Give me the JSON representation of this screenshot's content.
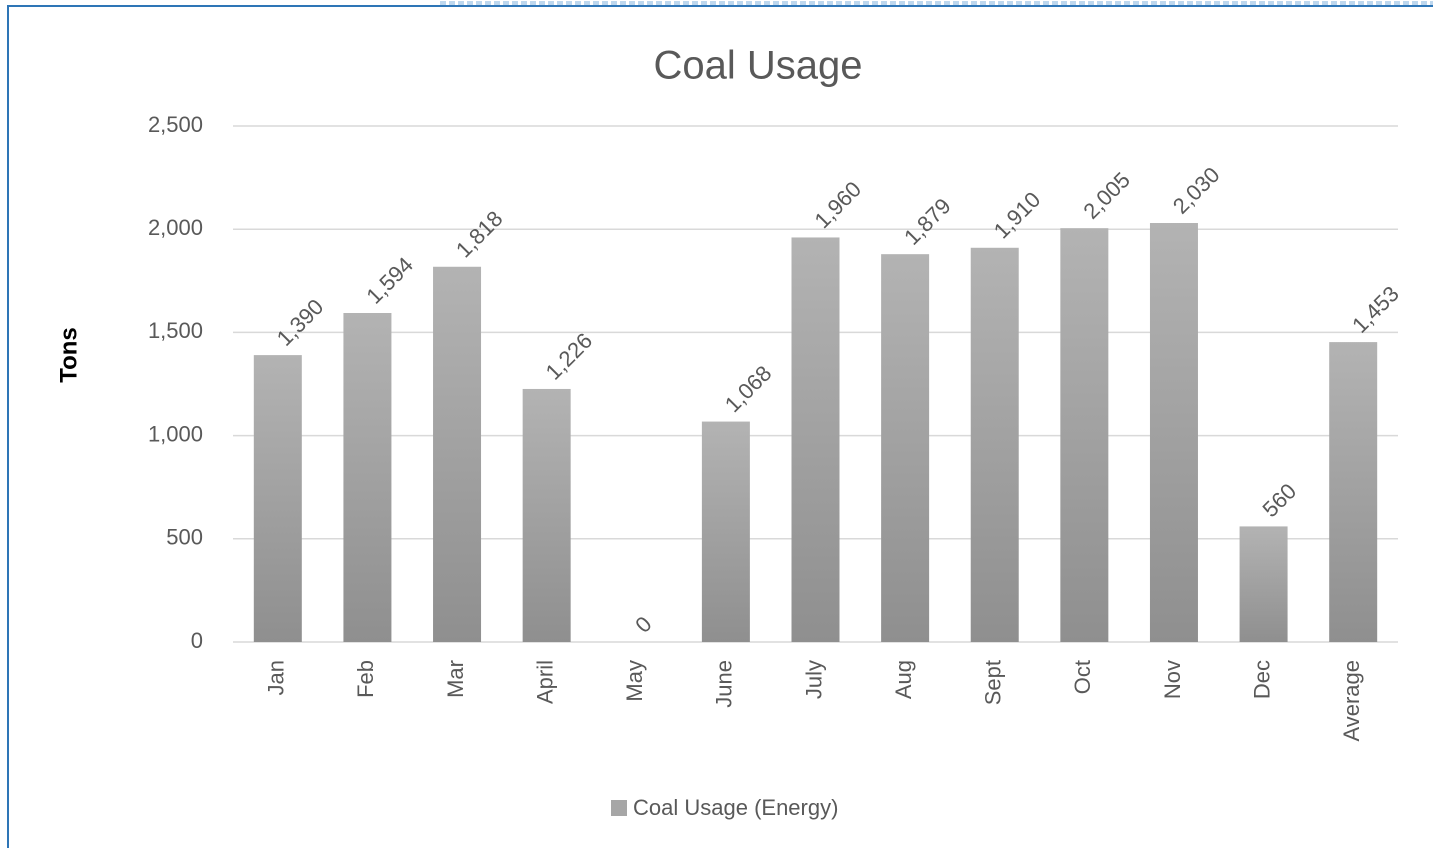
{
  "chart_data": {
    "type": "bar",
    "title": "Coal Usage",
    "y_label": "Tons",
    "categories": [
      "Jan",
      "Feb",
      "Mar",
      "April",
      "May",
      "June",
      "July",
      "Aug",
      "Sept",
      "Oct",
      "Nov",
      "Dec",
      "Average"
    ],
    "series": [
      {
        "name": "Coal Usage (Energy)",
        "color": "#a6a6a6",
        "values": [
          1390,
          1594,
          1818,
          1226,
          0,
          1068,
          1960,
          1879,
          1910,
          2005,
          2030,
          560,
          1453
        ],
        "value_labels": [
          "1,390",
          "1,594",
          "1,818",
          "1,226",
          "0",
          "1,068",
          "1,960",
          "1,879",
          "1,910",
          "2,005",
          "2,030",
          "560",
          "1,453"
        ]
      }
    ],
    "ylim": [
      0,
      2500
    ],
    "yticks": [
      0,
      500,
      {
        "value": 1000,
        "label": "1,000"
      },
      {
        "value": 1500,
        "label": "1,500"
      },
      {
        "value": 2000,
        "label": "2,000"
      },
      {
        "value": 2500,
        "label": "2,500"
      }
    ],
    "grid": true,
    "legend": "bottom"
  }
}
